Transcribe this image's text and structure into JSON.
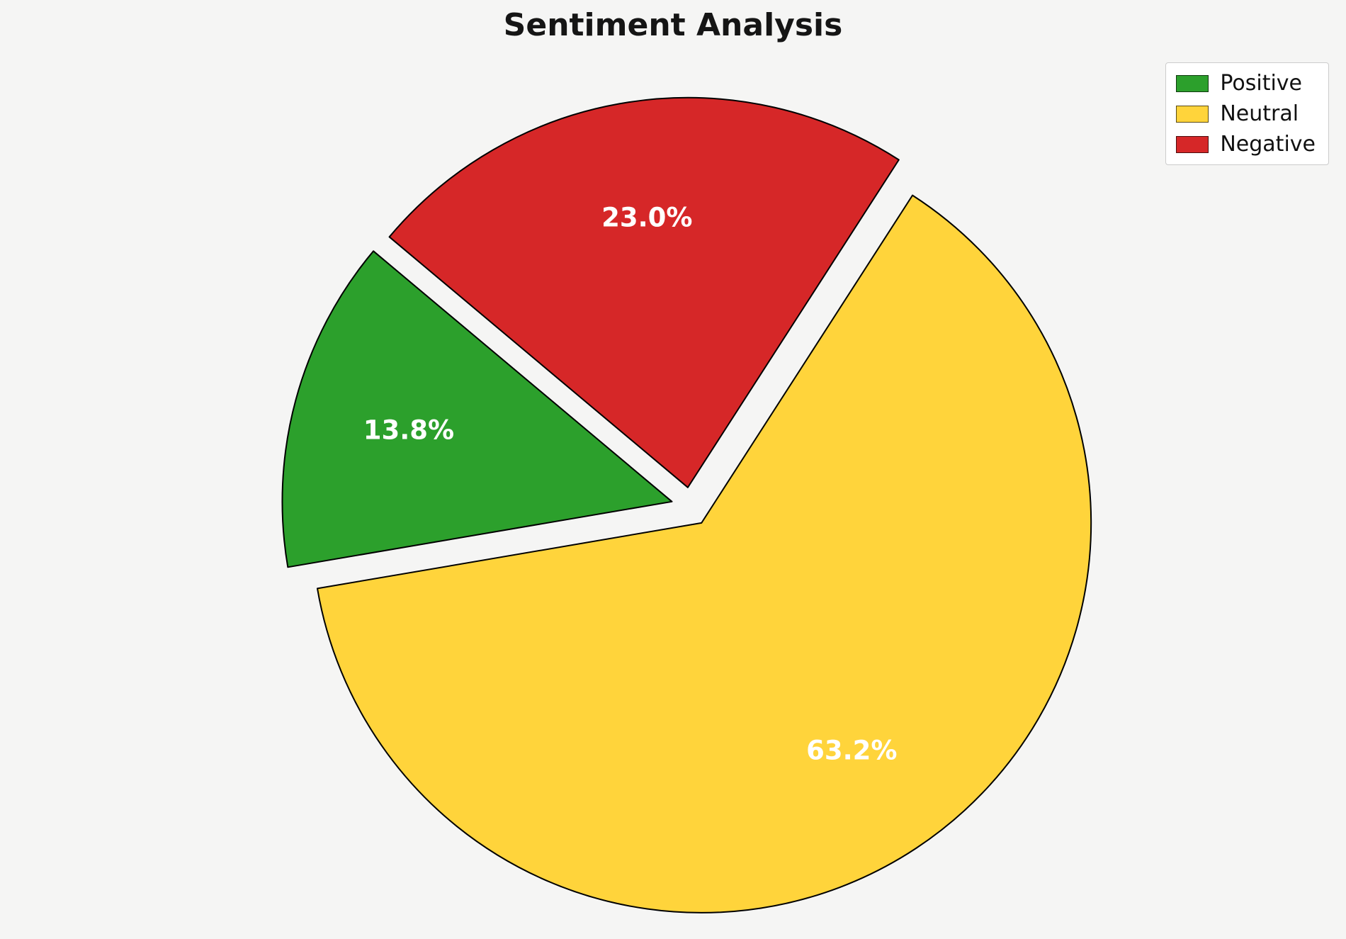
{
  "title": "Sentiment Analysis",
  "background_color": "#f5f5f4",
  "chart_data": {
    "type": "pie",
    "title": "Sentiment Analysis",
    "categories": [
      "Positive",
      "Neutral",
      "Negative"
    ],
    "values": [
      13.8,
      63.2,
      23.0
    ],
    "value_labels": [
      "13.8%",
      "63.2%",
      "23.0%"
    ],
    "colors": [
      "#2ca02c",
      "#ffd43b",
      "#d62728"
    ],
    "start_angle": 140,
    "direction": "counterclockwise",
    "explode": 0.05,
    "pct_distance": 0.7,
    "edge_color": "#000000",
    "edge_width": 2,
    "label_color": "#ffffff",
    "legend_position": "upper right"
  },
  "legend": {
    "items": [
      {
        "label": "Positive",
        "color": "#2ca02c"
      },
      {
        "label": "Neutral",
        "color": "#ffd43b"
      },
      {
        "label": "Negative",
        "color": "#d62728"
      }
    ]
  }
}
